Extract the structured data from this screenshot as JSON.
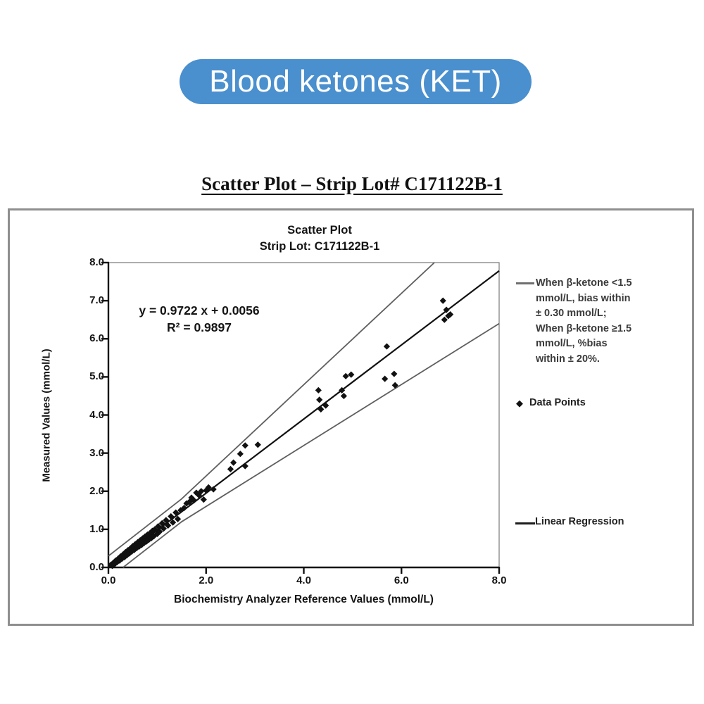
{
  "header": {
    "badge_label": "Blood ketones (KET)",
    "badge_color": "#4a8fce",
    "title": "Scatter Plot – Strip Lot# C171122B-1"
  },
  "icons": {
    "diamond": "◆"
  },
  "legend": {
    "bias_text": "When β-ketone <1.5\nmmol/L, bias within\n± 0.30 mmol/L;\nWhen β-ketone ≥1.5\nmmol/L, %bias\nwithin ± 20%.",
    "data_points_label": "Data Points",
    "regression_label": "Linear Regression"
  },
  "chart_data": {
    "type": "scatter",
    "title": "Scatter Plot",
    "subtitle": "Strip Lot: C171122B-1",
    "xlabel": "Biochemistry Analyzer Reference Values (mmol/L)",
    "ylabel": "Measured Values (mmol/L)",
    "xlim": [
      0,
      8
    ],
    "ylim": [
      0,
      8
    ],
    "grid": false,
    "equation": "y = 0.9722 x + 0.0056",
    "r_squared": "R² = 0.9897",
    "regression": {
      "slope": 0.9722,
      "intercept": 0.0056
    },
    "bias_lines": {
      "upper": [
        [
          0,
          0.3
        ],
        [
          1.5,
          1.8
        ],
        [
          6.674,
          8
        ]
      ],
      "lower": [
        [
          0.3,
          0
        ],
        [
          1.5,
          1.2
        ],
        [
          8,
          6.4
        ]
      ]
    },
    "xticks": {
      "values": [
        0,
        2,
        4,
        6,
        8
      ],
      "labels": [
        "0.0",
        "2.0",
        "4.0",
        "6.0",
        "8.0"
      ]
    },
    "yticks": {
      "values": [
        8,
        7,
        6,
        5,
        4,
        3,
        2,
        1,
        0
      ],
      "labels": [
        "8.0",
        "7.0",
        "6.0",
        "5.0",
        "4.0",
        "3.0",
        "2.0",
        "1.0",
        "0.0"
      ]
    },
    "colors": {
      "points": "#111111",
      "regression": "#111111",
      "bias": "#5f5f5f"
    },
    "points": [
      [
        0.05,
        0.07
      ],
      [
        0.08,
        0.04
      ],
      [
        0.1,
        0.12
      ],
      [
        0.13,
        0.09
      ],
      [
        0.15,
        0.18
      ],
      [
        0.18,
        0.14
      ],
      [
        0.2,
        0.23
      ],
      [
        0.23,
        0.18
      ],
      [
        0.25,
        0.29
      ],
      [
        0.28,
        0.23
      ],
      [
        0.3,
        0.34
      ],
      [
        0.33,
        0.27
      ],
      [
        0.35,
        0.4
      ],
      [
        0.38,
        0.32
      ],
      [
        0.4,
        0.45
      ],
      [
        0.43,
        0.37
      ],
      [
        0.45,
        0.5
      ],
      [
        0.48,
        0.42
      ],
      [
        0.5,
        0.56
      ],
      [
        0.53,
        0.46
      ],
      [
        0.55,
        0.61
      ],
      [
        0.58,
        0.51
      ],
      [
        0.6,
        0.66
      ],
      [
        0.63,
        0.55
      ],
      [
        0.65,
        0.71
      ],
      [
        0.68,
        0.59
      ],
      [
        0.7,
        0.76
      ],
      [
        0.73,
        0.64
      ],
      [
        0.75,
        0.81
      ],
      [
        0.78,
        0.68
      ],
      [
        0.8,
        0.86
      ],
      [
        0.83,
        0.73
      ],
      [
        0.85,
        0.9
      ],
      [
        0.88,
        0.77
      ],
      [
        0.9,
        0.96
      ],
      [
        0.93,
        0.82
      ],
      [
        0.95,
        1.0
      ],
      [
        1.0,
        0.88
      ],
      [
        1.02,
        1.08
      ],
      [
        1.05,
        0.94
      ],
      [
        1.1,
        1.16
      ],
      [
        1.13,
        1.02
      ],
      [
        1.18,
        1.24
      ],
      [
        1.22,
        1.1
      ],
      [
        1.28,
        1.34
      ],
      [
        1.32,
        1.18
      ],
      [
        1.38,
        1.44
      ],
      [
        1.42,
        1.27
      ],
      [
        1.48,
        1.5
      ],
      [
        1.55,
        1.56
      ],
      [
        1.6,
        1.68
      ],
      [
        1.66,
        1.72
      ],
      [
        1.7,
        1.83
      ],
      [
        1.75,
        1.76
      ],
      [
        1.8,
        1.96
      ],
      [
        1.85,
        1.9
      ],
      [
        1.9,
        2.0
      ],
      [
        1.95,
        1.78
      ],
      [
        2.0,
        2.02
      ],
      [
        2.05,
        2.1
      ],
      [
        2.15,
        2.05
      ],
      [
        2.5,
        2.58
      ],
      [
        2.56,
        2.75
      ],
      [
        2.7,
        2.98
      ],
      [
        2.8,
        2.66
      ],
      [
        2.8,
        3.2
      ],
      [
        3.06,
        3.22
      ],
      [
        4.3,
        4.65
      ],
      [
        4.32,
        4.4
      ],
      [
        4.35,
        4.15
      ],
      [
        4.45,
        4.25
      ],
      [
        4.78,
        4.65
      ],
      [
        4.82,
        4.5
      ],
      [
        4.86,
        5.02
      ],
      [
        4.97,
        5.06
      ],
      [
        5.66,
        4.95
      ],
      [
        5.7,
        5.8
      ],
      [
        5.85,
        5.08
      ],
      [
        5.87,
        4.78
      ],
      [
        6.85,
        7.0
      ],
      [
        6.88,
        6.5
      ],
      [
        6.92,
        6.76
      ],
      [
        6.96,
        6.6
      ],
      [
        7.0,
        6.64
      ]
    ]
  }
}
